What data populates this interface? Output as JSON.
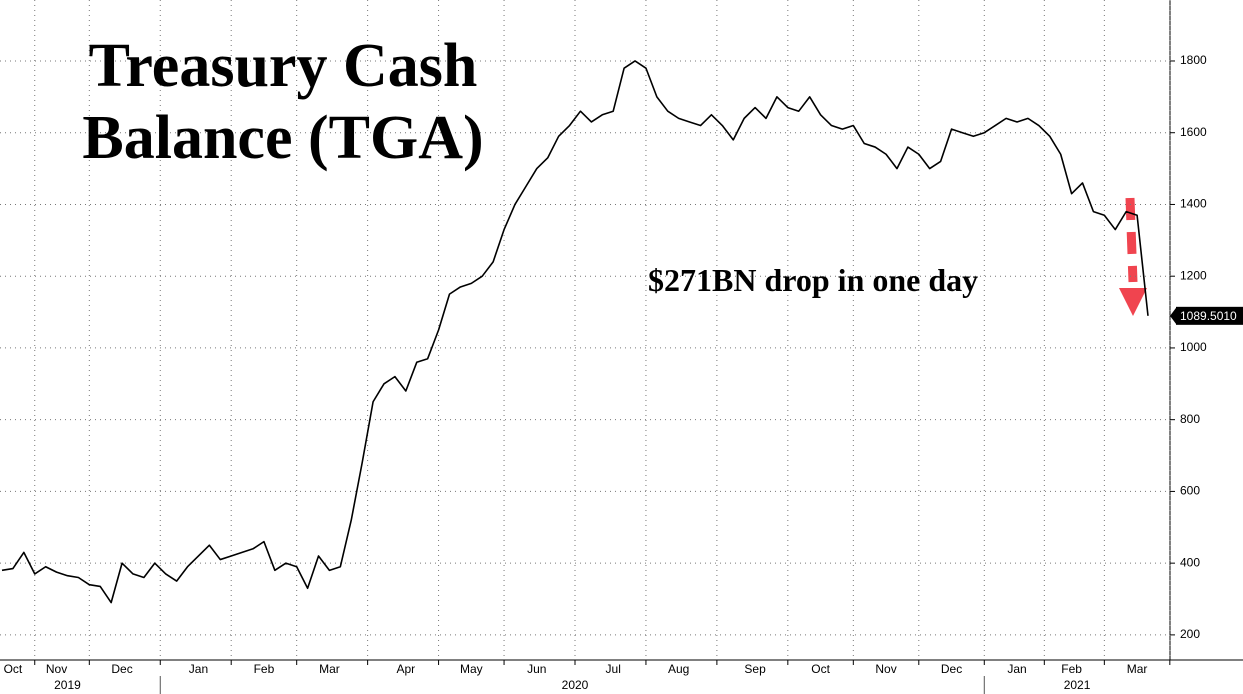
{
  "chart_data": {
    "type": "line",
    "title": "Treasury Cash Balance (TGA)",
    "annotation": "$271BN drop in one day",
    "color": "#000000",
    "categories": [
      null,
      "Oct",
      null,
      null,
      null,
      "Nov",
      null,
      null,
      null,
      null,
      null,
      "Dec",
      null,
      null,
      null,
      null,
      null,
      null,
      "Jan",
      null,
      null,
      null,
      null,
      null,
      "Feb",
      null,
      null,
      null,
      null,
      null,
      "Mar",
      null,
      null,
      null,
      null,
      null,
      null,
      "Apr",
      null,
      null,
      null,
      null,
      null,
      "May",
      null,
      null,
      null,
      null,
      null,
      "Jun",
      null,
      null,
      null,
      null,
      null,
      null,
      "Jul",
      null,
      null,
      null,
      null,
      null,
      "Aug",
      null,
      null,
      null,
      null,
      null,
      null,
      "Sep",
      null,
      null,
      null,
      null,
      null,
      "Oct",
      null,
      null,
      null,
      null,
      null,
      "Nov",
      null,
      null,
      null,
      null,
      null,
      "Dec",
      null,
      null,
      null,
      null,
      null,
      "Jan",
      null,
      null,
      null,
      null,
      "Feb",
      null,
      null,
      null,
      null,
      null,
      "Mar",
      null
    ],
    "values": [
      380,
      385,
      430,
      370,
      390,
      375,
      365,
      360,
      340,
      335,
      290,
      400,
      370,
      360,
      400,
      370,
      350,
      390,
      420,
      450,
      410,
      420,
      430,
      440,
      460,
      380,
      400,
      390,
      330,
      420,
      380,
      390,
      520,
      680,
      850,
      900,
      920,
      880,
      960,
      970,
      1050,
      1150,
      1170,
      1180,
      1200,
      1240,
      1330,
      1400,
      1450,
      1500,
      1530,
      1590,
      1620,
      1660,
      1630,
      1650,
      1660,
      1780,
      1800,
      1780,
      1700,
      1660,
      1640,
      1630,
      1620,
      1650,
      1620,
      1580,
      1640,
      1670,
      1640,
      1700,
      1670,
      1660,
      1700,
      1650,
      1620,
      1610,
      1620,
      1570,
      1560,
      1540,
      1500,
      1560,
      1540,
      1500,
      1520,
      1610,
      1600,
      1590,
      1600,
      1620,
      1640,
      1630,
      1640,
      1620,
      1590,
      1540,
      1430,
      1460,
      1380,
      1370,
      1330,
      1380,
      1370,
      1089.501
    ],
    "value_labels": [
      null,
      null,
      null,
      null,
      null,
      null,
      null,
      null,
      null,
      null,
      null,
      null,
      null,
      null,
      null,
      null,
      null,
      null,
      null,
      null,
      null,
      null,
      null,
      null,
      null,
      null,
      null,
      null,
      null,
      null,
      null,
      null,
      null,
      null,
      null,
      null,
      null,
      null,
      null,
      null,
      null,
      null,
      null,
      null,
      null,
      null,
      null,
      null,
      null,
      null,
      null,
      null,
      null,
      null,
      null,
      null,
      null,
      null,
      null,
      null,
      null,
      null,
      null,
      null,
      null,
      null,
      null,
      null,
      null,
      null,
      null,
      null,
      null,
      null,
      null,
      null,
      null,
      null,
      null,
      null,
      null,
      null,
      null,
      null,
      null,
      null,
      null,
      null,
      null,
      null,
      null,
      null,
      null,
      null,
      null,
      null,
      null,
      null,
      null,
      null,
      null,
      null,
      null,
      null,
      null,
      "1089.5010"
    ],
    "x_groups": [
      {
        "label": "2019",
        "count": 3
      },
      {
        "label": "2020",
        "count": 12
      },
      {
        "label": "2021",
        "count": 3
      }
    ],
    "ylim": [
      130,
      1970
    ],
    "yticks": [
      200,
      400,
      600,
      800,
      1000,
      1200,
      1400,
      1600,
      1800
    ],
    "grid": true
  }
}
